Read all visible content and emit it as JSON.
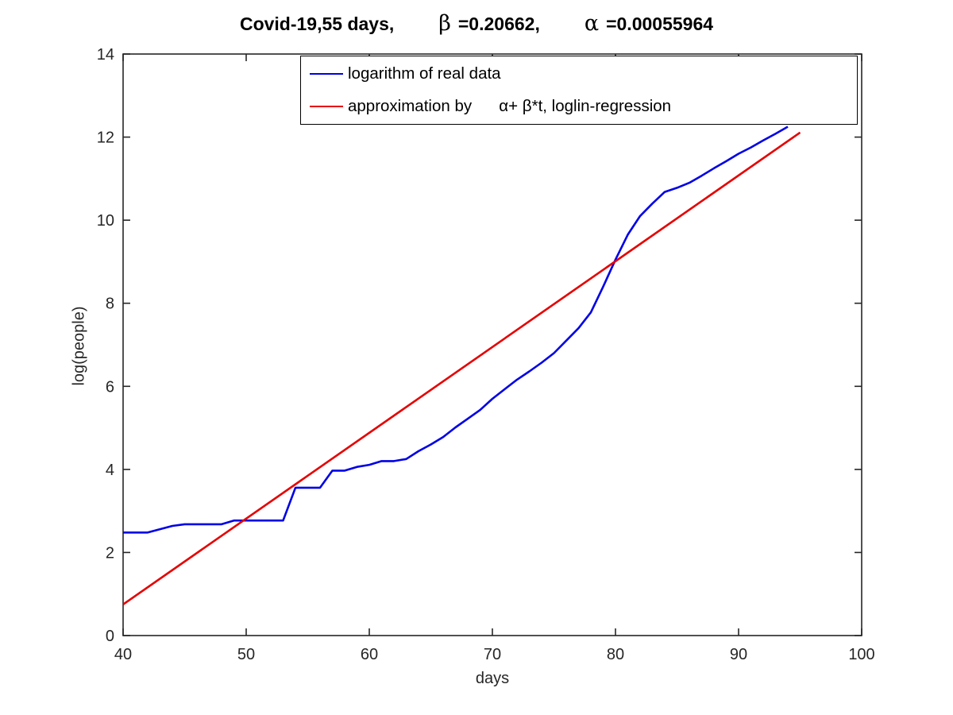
{
  "title": {
    "main": "Covid-19,55 days,",
    "beta_symbol": "β",
    "beta_value": "=0.20662,",
    "alpha_symbol": "α",
    "alpha_value": "=0.00055964"
  },
  "axes": {
    "xlabel": "days",
    "ylabel": "log(people)"
  },
  "legend": {
    "items": [
      {
        "label": "logarithm of real data",
        "color": "#0000e6"
      },
      {
        "label": "approximation by      α+ β*t, loglin-regression",
        "color": "#e60000"
      }
    ]
  },
  "chart_data": {
    "type": "line",
    "title": "Covid-19,55 days, β =0.20662, α =0.00055964",
    "xlabel": "days",
    "ylabel": "log(people)",
    "xlim": [
      40,
      100
    ],
    "ylim": [
      0,
      14
    ],
    "x_ticks": [
      40,
      50,
      60,
      70,
      80,
      90,
      100
    ],
    "y_ticks": [
      0,
      2,
      4,
      6,
      8,
      10,
      12,
      14
    ],
    "grid": false,
    "legend_position": "top",
    "parameters": {
      "beta": 0.20662,
      "alpha": 0.00055964
    },
    "series": [
      {
        "name": "logarithm of real data",
        "color": "#0000e6",
        "x": [
          40,
          41,
          42,
          43,
          44,
          45,
          46,
          47,
          48,
          49,
          50,
          51,
          52,
          53,
          54,
          55,
          56,
          57,
          58,
          59,
          60,
          61,
          62,
          63,
          64,
          65,
          66,
          67,
          68,
          69,
          70,
          71,
          72,
          73,
          74,
          75,
          76,
          77,
          78,
          79,
          80,
          81,
          82,
          83,
          84,
          85,
          86,
          87,
          88,
          89,
          90,
          91,
          92,
          93,
          94
        ],
        "y": [
          2.48,
          2.48,
          2.48,
          2.56,
          2.64,
          2.68,
          2.68,
          2.68,
          2.68,
          2.77,
          2.77,
          2.77,
          2.77,
          2.77,
          3.56,
          3.56,
          3.56,
          3.97,
          3.97,
          4.06,
          4.11,
          4.2,
          4.2,
          4.25,
          4.44,
          4.6,
          4.78,
          5.01,
          5.22,
          5.43,
          5.7,
          5.93,
          6.16,
          6.36,
          6.57,
          6.8,
          7.1,
          7.4,
          7.78,
          8.4,
          9.05,
          9.65,
          10.1,
          10.4,
          10.68,
          10.78,
          10.9,
          11.07,
          11.25,
          11.42,
          11.6,
          11.75,
          11.92,
          12.08,
          12.25
        ]
      },
      {
        "name": "approximation by α+ β*t, loglin-regression",
        "color": "#e60000",
        "x": [
          40,
          95
        ],
        "y": [
          0.75,
          12.11
        ]
      }
    ]
  }
}
